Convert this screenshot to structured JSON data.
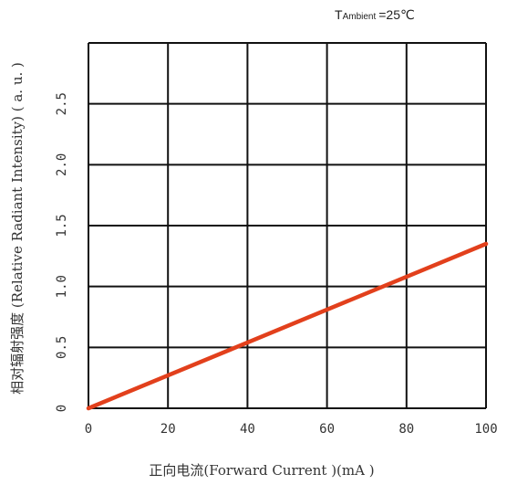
{
  "chart_data": {
    "type": "line",
    "xlabel": "正向电流(Forward  Current )(mA )",
    "ylabel": "相对辐射强度 (Relative Radiant Intensity)  ( a. u. )",
    "condition": {
      "prefix": "T",
      "subscript": "Ambient",
      "value": "=25℃"
    },
    "xlim": [
      0,
      100
    ],
    "ylim": [
      0,
      3.0
    ],
    "x_ticks": [
      0,
      20,
      40,
      60,
      80,
      100
    ],
    "x_tick_labels": [
      "0",
      "20",
      "40",
      "60",
      "80",
      "100"
    ],
    "y_ticks": [
      0,
      0.5,
      1.0,
      1.5,
      2.0,
      2.5
    ],
    "y_tick_labels": [
      "0",
      "0.5",
      "1.0",
      "1.5",
      "2.0",
      "2.5"
    ],
    "grid": true,
    "series": [
      {
        "x": [
          0,
          100
        ],
        "y": [
          0,
          1.35
        ],
        "color": "#e2401c"
      }
    ]
  }
}
